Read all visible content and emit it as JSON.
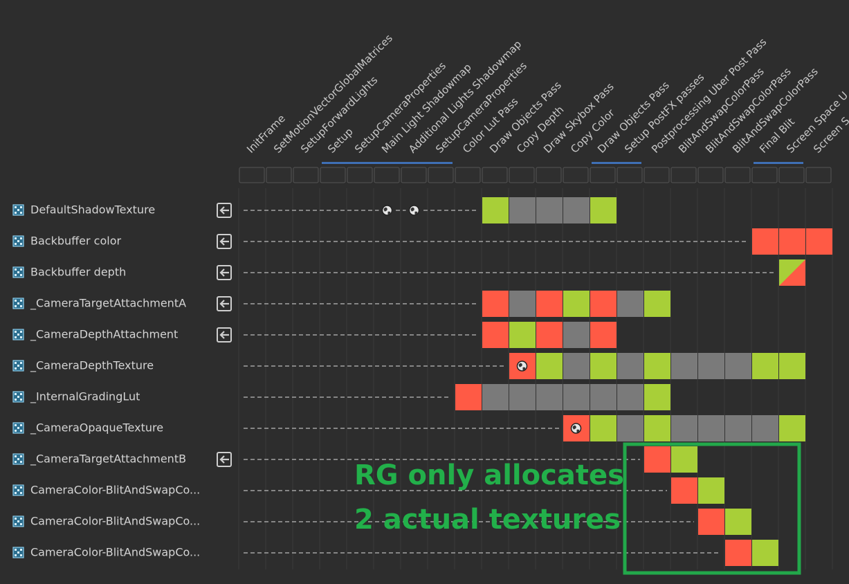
{
  "passes": [
    "InitFrame",
    "SetMotionVectorGlobalMatrices",
    "SetupForwardLights",
    "Setup",
    "SetupCameraProperties",
    "Main Light Shadowmap",
    "Additional Lights Shadowmap",
    "SetupCameraProperties",
    "Color Lut Pass",
    "Draw Objects Pass",
    "Copy Depth",
    "Draw Skybox Pass",
    "Copy Color",
    "Draw Objects Pass",
    "Setup PostFX passes",
    "Postprocessing Uber Post Pass",
    "BlitAndSwapColorPass",
    "BlitAndSwapColorPass",
    "BlitAndSwapColorPass",
    "Final Blit",
    "Screen Space U",
    "Screen S"
  ],
  "resources": [
    {
      "name": "DefaultShadowTexture",
      "imported": true,
      "access": [
        null,
        null,
        null,
        null,
        null,
        "global",
        "global",
        null,
        null,
        "read",
        "used",
        "used",
        "used",
        "read",
        null,
        null,
        null,
        null,
        null,
        null,
        null,
        null
      ]
    },
    {
      "name": "Backbuffer color",
      "imported": true,
      "access": [
        null,
        null,
        null,
        null,
        null,
        null,
        null,
        null,
        null,
        null,
        null,
        null,
        null,
        null,
        null,
        null,
        null,
        null,
        null,
        "write",
        "write",
        "write"
      ]
    },
    {
      "name": "Backbuffer depth",
      "imported": true,
      "access": [
        null,
        null,
        null,
        null,
        null,
        null,
        null,
        null,
        null,
        null,
        null,
        null,
        null,
        null,
        null,
        null,
        null,
        null,
        null,
        null,
        "readwrite",
        null
      ]
    },
    {
      "name": "_CameraTargetAttachmentA",
      "imported": true,
      "access": [
        null,
        null,
        null,
        null,
        null,
        null,
        null,
        null,
        null,
        "write",
        "used",
        "write",
        "read",
        "write",
        "used",
        "read",
        null,
        null,
        null,
        null,
        null,
        null
      ]
    },
    {
      "name": "_CameraDepthAttachment",
      "imported": true,
      "access": [
        null,
        null,
        null,
        null,
        null,
        null,
        null,
        null,
        null,
        "write",
        "read",
        "write",
        "used",
        "write",
        null,
        null,
        null,
        null,
        null,
        null,
        null,
        null
      ]
    },
    {
      "name": "_CameraDepthTexture",
      "imported": false,
      "access": [
        null,
        null,
        null,
        null,
        null,
        null,
        null,
        null,
        null,
        null,
        "write-global",
        "read",
        "used",
        "read",
        "used",
        "read",
        "used",
        "used",
        "used",
        "read",
        "read",
        null
      ]
    },
    {
      "name": "_InternalGradingLut",
      "imported": false,
      "access": [
        null,
        null,
        null,
        null,
        null,
        null,
        null,
        null,
        "write",
        "used",
        "used",
        "used",
        "used",
        "used",
        "used",
        "read",
        null,
        null,
        null,
        null,
        null,
        null
      ]
    },
    {
      "name": "_CameraOpaqueTexture",
      "imported": false,
      "access": [
        null,
        null,
        null,
        null,
        null,
        null,
        null,
        null,
        null,
        null,
        null,
        null,
        "write-global",
        "read",
        "used",
        "read",
        "used",
        "used",
        "used",
        "used",
        "read",
        null
      ]
    },
    {
      "name": "_CameraTargetAttachmentB",
      "imported": true,
      "access": [
        null,
        null,
        null,
        null,
        null,
        null,
        null,
        null,
        null,
        null,
        null,
        null,
        null,
        null,
        null,
        "write",
        "read",
        null,
        null,
        null,
        null,
        null
      ]
    },
    {
      "name": "CameraColor-BlitAndSwapCo...",
      "imported": false,
      "access": [
        null,
        null,
        null,
        null,
        null,
        null,
        null,
        null,
        null,
        null,
        null,
        null,
        null,
        null,
        null,
        null,
        "write",
        "read",
        null,
        null,
        null,
        null
      ]
    },
    {
      "name": "CameraColor-BlitAndSwapCo...",
      "imported": false,
      "access": [
        null,
        null,
        null,
        null,
        null,
        null,
        null,
        null,
        null,
        null,
        null,
        null,
        null,
        null,
        null,
        null,
        null,
        "write",
        "read",
        null,
        null,
        null
      ]
    },
    {
      "name": "CameraColor-BlitAndSwapCo...",
      "imported": false,
      "access": [
        null,
        null,
        null,
        null,
        null,
        null,
        null,
        null,
        null,
        null,
        null,
        null,
        null,
        null,
        null,
        null,
        null,
        null,
        "write",
        "read",
        null,
        null
      ]
    }
  ],
  "annotation": {
    "lines": [
      "RG only allocates",
      "2 actual textures"
    ]
  }
}
